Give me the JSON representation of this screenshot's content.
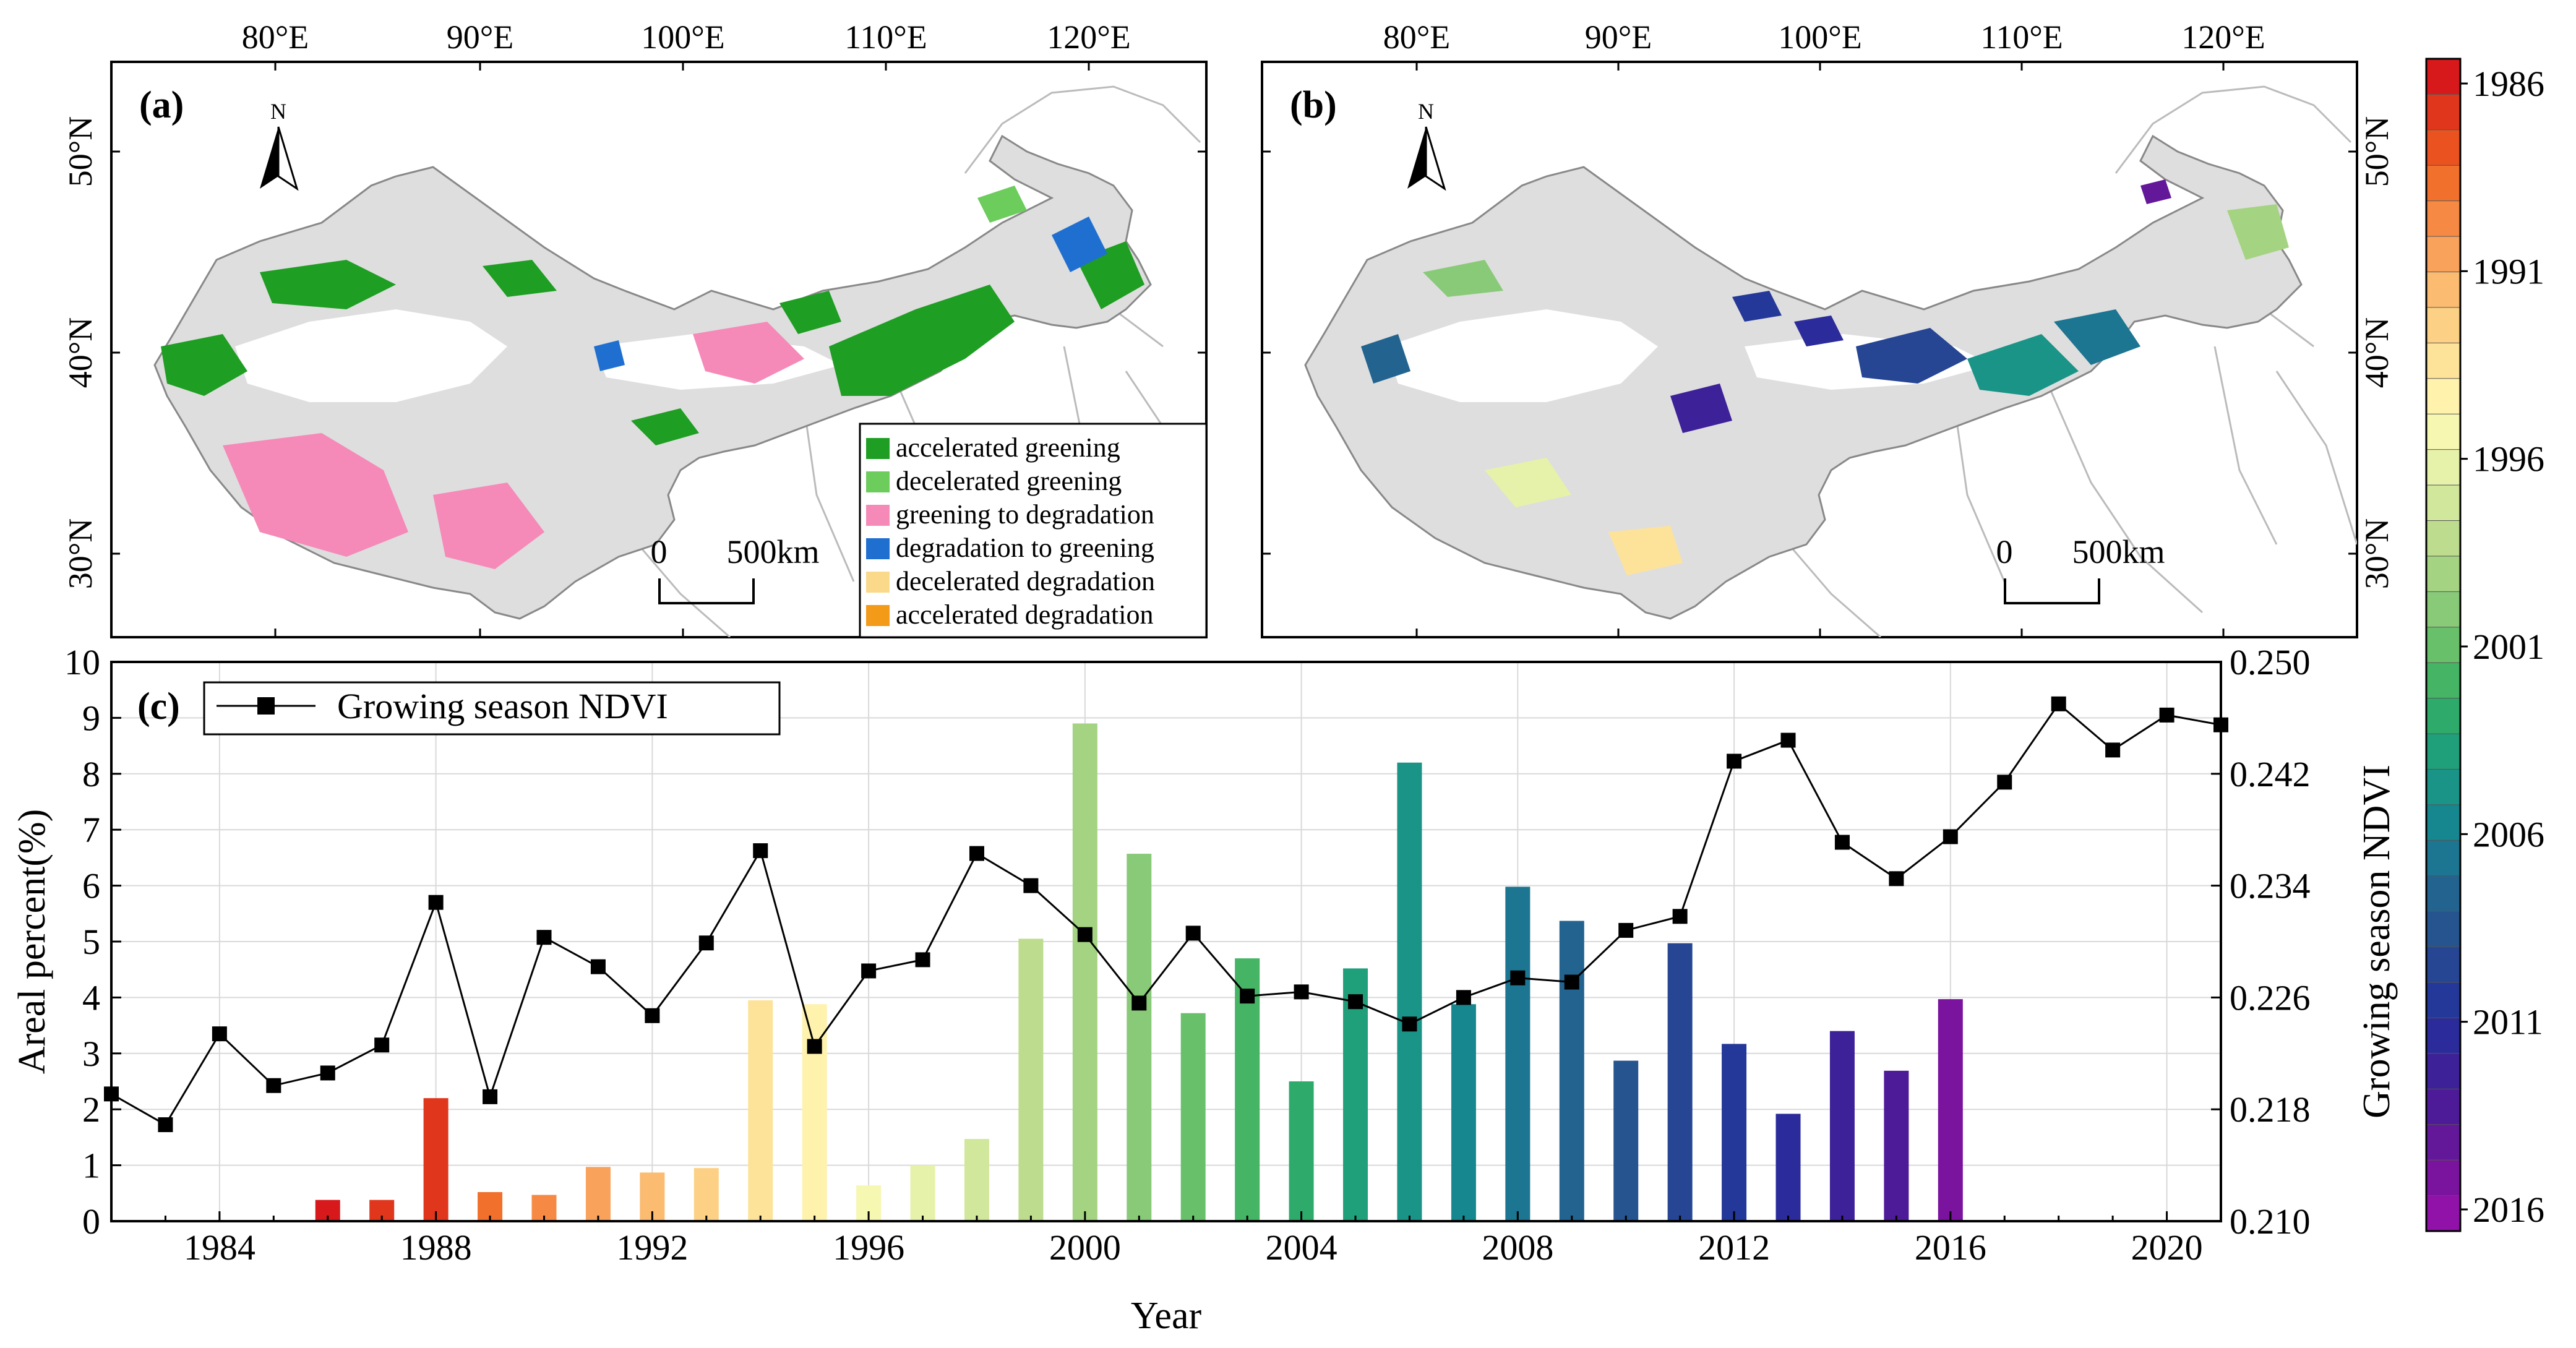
{
  "map_a": {
    "panel_label": "(a)",
    "north_label": "N",
    "lon_labels": [
      "80°E",
      "90°E",
      "100°E",
      "110°E",
      "120°E"
    ],
    "lat_labels": [
      "50°N",
      "40°N",
      "30°N"
    ],
    "scale_zero": "0",
    "scale_value": "500",
    "scale_unit": "km",
    "legend": [
      {
        "label": "accelerated greening",
        "color": "#1e9e22"
      },
      {
        "label": "decelerated greening",
        "color": "#6ccc5c"
      },
      {
        "label": "greening to degradation",
        "color": "#f58ab8"
      },
      {
        "label": "degradation to greening",
        "color": "#1f6fd1"
      },
      {
        "label": "decelerated degradation",
        "color": "#fbd98a"
      },
      {
        "label": "accelerated degradation",
        "color": "#f39a18"
      }
    ]
  },
  "map_b": {
    "panel_label": "(b)",
    "north_label": "N",
    "lon_labels": [
      "80°E",
      "90°E",
      "100°E",
      "110°E",
      "120°E"
    ],
    "lat_labels": [
      "50°N",
      "40°N",
      "30°N"
    ],
    "scale_zero": "0",
    "scale_value": "500",
    "scale_unit": "km"
  },
  "colorbar": {
    "labels": [
      "1986",
      "1991",
      "1996",
      "2001",
      "2006",
      "2011",
      "2016"
    ],
    "colors": [
      "#d7191c",
      "#e0361c",
      "#ea531f",
      "#f1702c",
      "#f68a45",
      "#f9a25c",
      "#fbbb70",
      "#fcd185",
      "#fde39a",
      "#fff2ad",
      "#f6f7b0",
      "#e6f2a9",
      "#d1e79b",
      "#bddc8e",
      "#a4d382",
      "#89ca79",
      "#69c06b",
      "#45b565",
      "#2eab6b",
      "#1fa07a",
      "#199487",
      "#16868f",
      "#1c7591",
      "#22648f",
      "#26548f",
      "#264593",
      "#233898",
      "#2b2b9b",
      "#3d2199",
      "#4e1b98",
      "#63189a",
      "#7a149e",
      "#9012a8"
    ]
  },
  "chart_data": {
    "type": "bar",
    "panel_label": "(c)",
    "xlabel": "Year",
    "ylabel": "Areal percent(%)",
    "y2label": "Growing season NDVI",
    "xlim": [
      1982,
      2021
    ],
    "ylim": [
      0,
      10
    ],
    "y2lim": [
      0.21,
      0.25
    ],
    "x_ticks": [
      1984,
      1988,
      1992,
      1996,
      2000,
      2004,
      2008,
      2012,
      2016,
      2020
    ],
    "y_ticks": [
      0,
      1,
      2,
      3,
      4,
      5,
      6,
      7,
      8,
      9,
      10
    ],
    "y2_ticks": [
      "0.210",
      "0.218",
      "0.226",
      "0.234",
      "0.242",
      "0.250"
    ],
    "grid": true,
    "legend": {
      "label": "Growing season NDVI",
      "position": "top-left"
    },
    "bars": {
      "name": "Areal percent",
      "years": [
        1986,
        1987,
        1988,
        1989,
        1990,
        1991,
        1992,
        1993,
        1994,
        1995,
        1996,
        1997,
        1998,
        1999,
        2000,
        2001,
        2002,
        2003,
        2004,
        2005,
        2006,
        2007,
        2008,
        2009,
        2010,
        2011,
        2012,
        2013,
        2014,
        2015,
        2016
      ],
      "values": [
        0.38,
        0.38,
        2.2,
        0.52,
        0.47,
        0.97,
        0.87,
        0.95,
        3.95,
        3.88,
        0.64,
        1.0,
        1.47,
        5.05,
        8.9,
        6.57,
        3.72,
        4.7,
        2.5,
        4.52,
        8.2,
        3.88,
        5.98,
        5.37,
        2.87,
        4.97,
        3.17,
        1.92,
        3.4,
        2.69,
        3.97
      ],
      "colors": [
        "#d7191c",
        "#e0361c",
        "#e0361c",
        "#f1702c",
        "#f68a45",
        "#f9a25c",
        "#fbbb70",
        "#fcd185",
        "#fde39a",
        "#fff2ad",
        "#f6f7b0",
        "#e6f2a9",
        "#d1e79b",
        "#bddc8e",
        "#a4d382",
        "#89ca79",
        "#69c06b",
        "#45b565",
        "#2eab6b",
        "#1fa07a",
        "#199487",
        "#16868f",
        "#1c7591",
        "#22648f",
        "#26548f",
        "#264593",
        "#233898",
        "#2b2b9b",
        "#3d2199",
        "#4e1b98",
        "#7a149e"
      ]
    },
    "line": {
      "name": "Growing season NDVI",
      "years": [
        1982,
        1983,
        1984,
        1985,
        1986,
        1987,
        1988,
        1989,
        1990,
        1991,
        1992,
        1993,
        1994,
        1995,
        1996,
        1997,
        1998,
        1999,
        2000,
        2001,
        2002,
        2003,
        2004,
        2005,
        2006,
        2007,
        2008,
        2009,
        2010,
        2011,
        2012,
        2013,
        2014,
        2015,
        2016,
        2017,
        2018,
        2019,
        2020,
        2021
      ],
      "values": [
        0.2191,
        0.2169,
        0.2234,
        0.2197,
        0.2206,
        0.2226,
        0.2328,
        0.2189,
        0.2303,
        0.2282,
        0.2247,
        0.2299,
        0.2365,
        0.2225,
        0.2279,
        0.2287,
        0.2363,
        0.234,
        0.2305,
        0.2256,
        0.2306,
        0.2261,
        0.2264,
        0.2257,
        0.2241,
        0.226,
        0.2274,
        0.2271,
        0.2308,
        0.2318,
        0.2429,
        0.2444,
        0.2371,
        0.2345,
        0.2375,
        0.2414,
        0.247,
        0.2437,
        0.2462,
        0.2455
      ]
    }
  }
}
